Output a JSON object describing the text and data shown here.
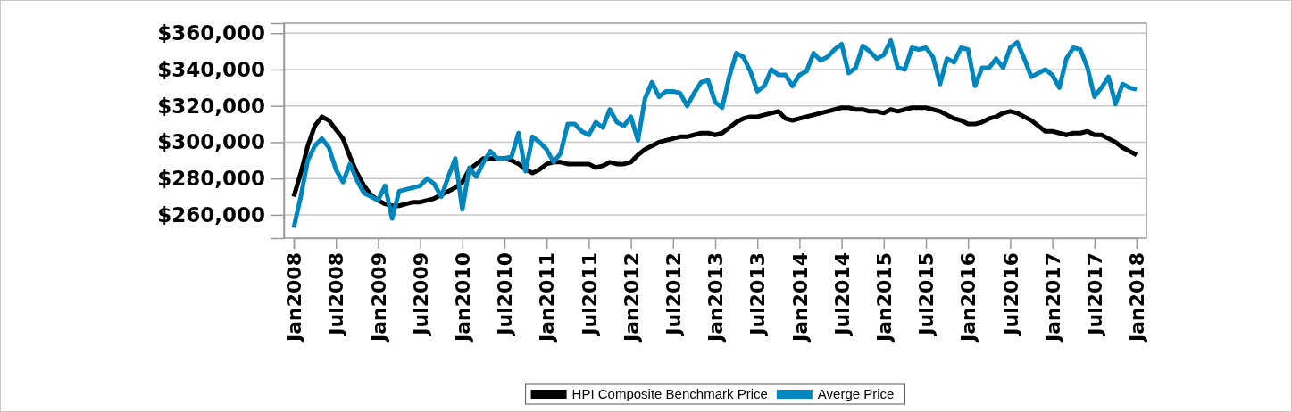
{
  "chart_data": {
    "type": "line",
    "categories": [
      "Jan2008",
      null,
      null,
      null,
      null,
      null,
      "Jul2008",
      null,
      null,
      null,
      null,
      null,
      "Jan2009",
      null,
      null,
      null,
      null,
      null,
      "Jul2009",
      null,
      null,
      null,
      null,
      null,
      "Jan2010",
      null,
      null,
      null,
      null,
      null,
      "Jul2010",
      null,
      null,
      null,
      null,
      null,
      "Jan2011",
      null,
      null,
      null,
      null,
      null,
      "Jul2011",
      null,
      null,
      null,
      null,
      null,
      "Jan2012",
      null,
      null,
      null,
      null,
      null,
      "Jul2012",
      null,
      null,
      null,
      null,
      null,
      "Jan2013",
      null,
      null,
      null,
      null,
      null,
      "Jul2013",
      null,
      null,
      null,
      null,
      null,
      "Jan2014",
      null,
      null,
      null,
      null,
      null,
      "Jul2014",
      null,
      null,
      null,
      null,
      null,
      "Jan2015",
      null,
      null,
      null,
      null,
      null,
      "Jul2015",
      null,
      null,
      null,
      null,
      null,
      "Jan2016",
      null,
      null,
      null,
      null,
      null,
      "Jul2016",
      null,
      null,
      null,
      null,
      null,
      "Jan2017",
      null,
      null,
      null,
      null,
      null,
      "Jul2017",
      null,
      null,
      null,
      null,
      null,
      "Jan2018"
    ],
    "series": [
      {
        "name": "HPI Composite Benchmark Price",
        "color": "#000000",
        "values": [
          270000,
          283000,
          298000,
          309000,
          314000,
          312000,
          307000,
          302000,
          292000,
          283000,
          276000,
          271000,
          268000,
          266000,
          265000,
          265000,
          266000,
          267000,
          267000,
          268000,
          269000,
          271000,
          273000,
          275000,
          278000,
          285000,
          288000,
          291000,
          291000,
          291000,
          291000,
          290000,
          288000,
          285000,
          283000,
          285000,
          288000,
          289000,
          289000,
          288000,
          288000,
          288000,
          288000,
          286000,
          287000,
          289000,
          288000,
          288000,
          289000,
          293000,
          296000,
          298000,
          300000,
          301000,
          302000,
          303000,
          303000,
          304000,
          305000,
          305000,
          304000,
          305000,
          308000,
          311000,
          313000,
          314000,
          314000,
          315000,
          316000,
          317000,
          313000,
          312000,
          313000,
          314000,
          315000,
          316000,
          317000,
          318000,
          319000,
          319000,
          318000,
          318000,
          317000,
          317000,
          316000,
          318000,
          317000,
          318000,
          319000,
          319000,
          319000,
          318000,
          317000,
          315000,
          313000,
          312000,
          310000,
          310000,
          311000,
          313000,
          314000,
          316000,
          317000,
          316000,
          314000,
          312000,
          309000,
          306000,
          306000,
          305000,
          304000,
          305000,
          305000,
          306000,
          304000,
          304000,
          302000,
          300000,
          297000,
          295000,
          293000
        ]
      },
      {
        "name": "Averge Price",
        "color": "#0086bf",
        "values": [
          253000,
          270000,
          290000,
          298000,
          302000,
          297000,
          285000,
          278000,
          288000,
          279000,
          272000,
          270000,
          268000,
          276000,
          258000,
          273000,
          274000,
          275000,
          276000,
          280000,
          277000,
          270000,
          281000,
          291000,
          263000,
          286000,
          281000,
          289000,
          295000,
          291000,
          291000,
          292000,
          305000,
          284000,
          303000,
          300000,
          296000,
          289000,
          294000,
          310000,
          310000,
          306000,
          304000,
          311000,
          308000,
          318000,
          311000,
          309000,
          314000,
          301000,
          324000,
          333000,
          325000,
          328000,
          328000,
          327000,
          320000,
          327000,
          333000,
          334000,
          322000,
          319000,
          336000,
          349000,
          347000,
          339000,
          328000,
          331000,
          340000,
          337000,
          337000,
          331000,
          337000,
          339000,
          349000,
          345000,
          347000,
          351000,
          354000,
          338000,
          341000,
          353000,
          350000,
          346000,
          348000,
          356000,
          341000,
          340000,
          352000,
          351000,
          352000,
          347000,
          332000,
          346000,
          344000,
          352000,
          351000,
          331000,
          341000,
          341000,
          346000,
          341000,
          352000,
          355000,
          346000,
          336000,
          338000,
          340000,
          337000,
          330000,
          346000,
          352000,
          351000,
          341000,
          325000,
          330000,
          336000,
          321000,
          332000,
          330000,
          329000
        ]
      }
    ],
    "ylim": [
      247200,
      365500
    ],
    "yticks": [
      {
        "value": 260000,
        "label": "$260,000"
      },
      {
        "value": 280000,
        "label": "$280,000"
      },
      {
        "value": 300000,
        "label": "$300,000"
      },
      {
        "value": 320000,
        "label": "$320,000"
      },
      {
        "value": 340000,
        "label": "$340,000"
      },
      {
        "value": 360000,
        "label": "$360,000"
      }
    ],
    "grid": "y",
    "legend": "bottom",
    "marker": "none",
    "line_style": "solid"
  }
}
